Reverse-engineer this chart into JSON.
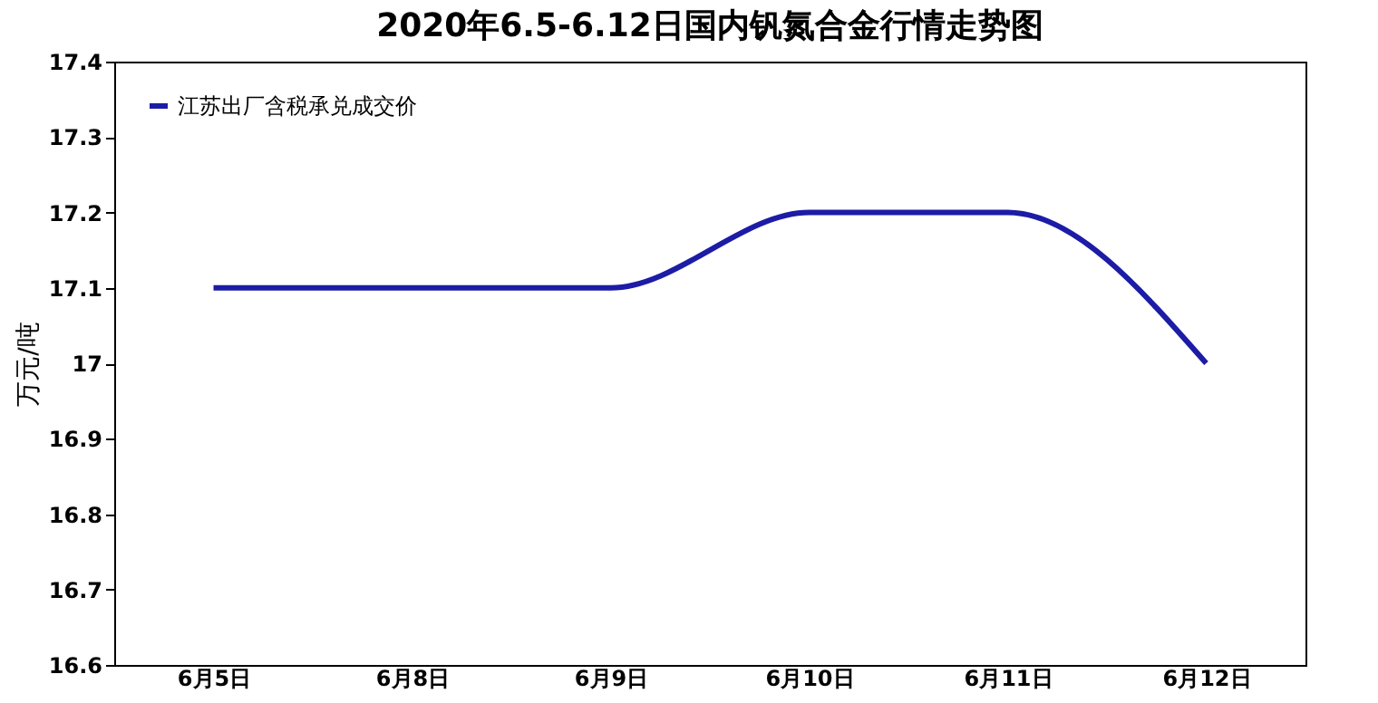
{
  "chart_data": {
    "type": "line",
    "title": "2020年6.5-6.12日国内钒氮合金行情走势图",
    "ylabel": "万元/吨",
    "categories": [
      "6月5日",
      "6月8日",
      "6月9日",
      "6月10日",
      "6月11日",
      "6月12日"
    ],
    "series": [
      {
        "name": "江苏出厂含税承兑成交价",
        "color": "#1c1ca6",
        "values": [
          17.1,
          17.1,
          17.1,
          17.2,
          17.2,
          17.0
        ]
      }
    ],
    "ylim": [
      16.6,
      17.4
    ],
    "yticks": [
      16.6,
      16.7,
      16.8,
      16.9,
      17,
      17.1,
      17.2,
      17.3,
      17.4
    ],
    "grid": false,
    "legend": "top left",
    "marker": "none",
    "line_style": "solid"
  }
}
